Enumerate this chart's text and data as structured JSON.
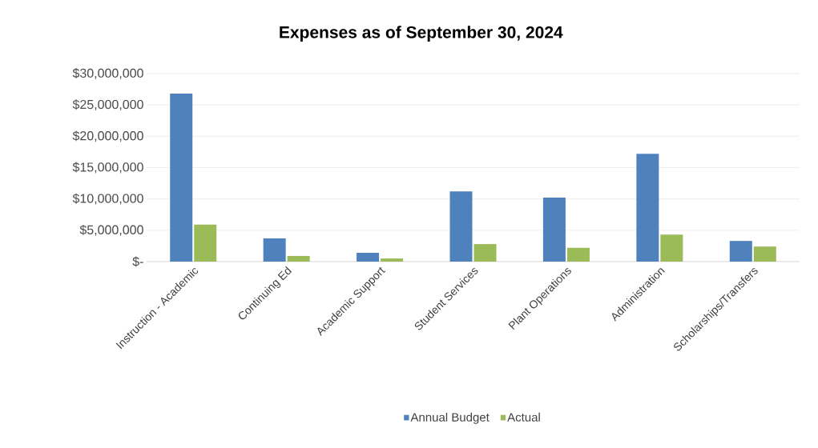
{
  "chart_data": {
    "type": "bar",
    "title": "Expenses as of September 30, 2024",
    "categories": [
      "Instruction - Academic",
      "Continuing Ed",
      "Academic Support",
      "Student Services",
      "Plant Operations",
      "Administration",
      "Scholarships/Transfers"
    ],
    "series": [
      {
        "name": "Annual Budget",
        "color": "#4f81bd",
        "values": [
          26800000,
          3700000,
          1400000,
          11200000,
          10200000,
          17200000,
          3300000
        ]
      },
      {
        "name": "Actual",
        "color": "#9bbb59",
        "values": [
          5900000,
          900000,
          500000,
          2800000,
          2200000,
          4300000,
          2400000
        ]
      }
    ],
    "ylim": [
      0,
      30000000
    ],
    "yticks": [
      {
        "value": 0,
        "label": "$-"
      },
      {
        "value": 5000000,
        "label": "$5,000,000"
      },
      {
        "value": 10000000,
        "label": "$10,000,000"
      },
      {
        "value": 15000000,
        "label": "$15,000,000"
      },
      {
        "value": 20000000,
        "label": "$20,000,000"
      },
      {
        "value": 25000000,
        "label": "$25,000,000"
      },
      {
        "value": 30000000,
        "label": "$30,000,000"
      }
    ],
    "grid": "y",
    "legend": "bottom"
  }
}
